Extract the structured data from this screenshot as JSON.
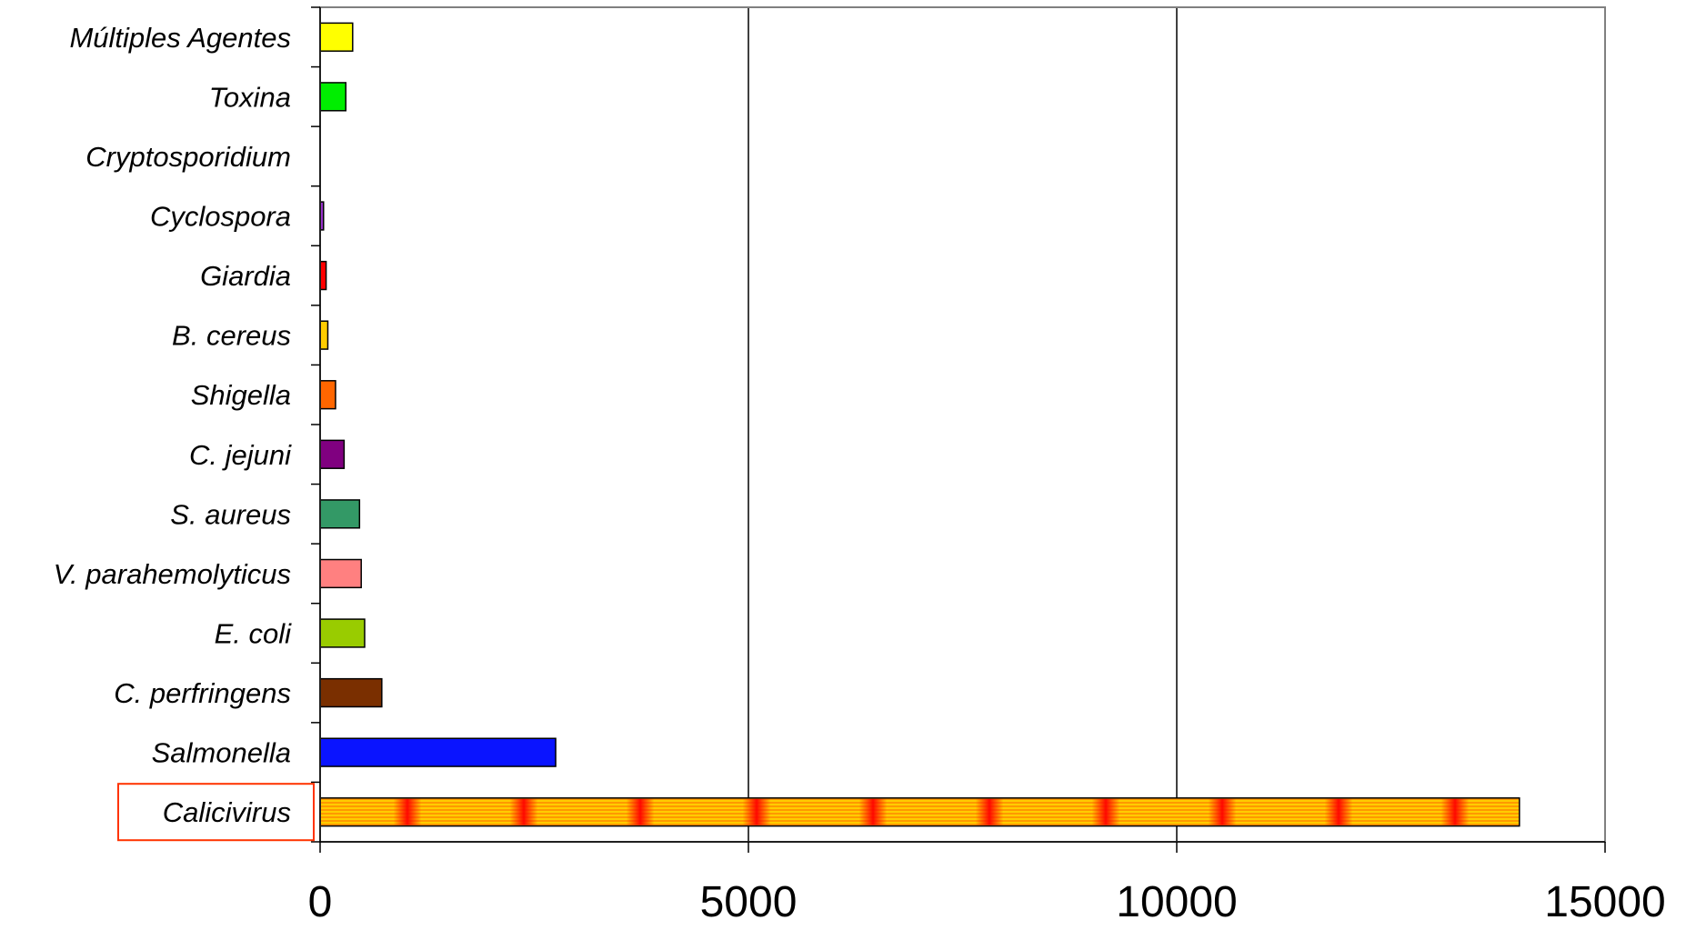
{
  "chart_data": {
    "type": "bar",
    "orientation": "horizontal",
    "categories": [
      "Calicivirus",
      "Salmonella",
      "C. perfringens",
      "E. coli",
      "V. parahemolyticus",
      "S. aureus",
      "C. jejuni",
      "Shigella",
      "B. cereus",
      "Giardia",
      "Cyclospora",
      "Cryptosporidium",
      "Toxina",
      "Múltiples Agentes"
    ],
    "values": [
      14000,
      2750,
      720,
      520,
      480,
      460,
      280,
      180,
      90,
      70,
      40,
      0,
      300,
      380
    ],
    "bar_colors": [
      "#ffd24d",
      "#0a14ff",
      "#7a2f00",
      "#99cc00",
      "#ff8080",
      "#339966",
      "#800080",
      "#ff6600",
      "#ffcc00",
      "#ff0000",
      "#9933cc",
      "#cccccc",
      "#00ee00",
      "#ffff00"
    ],
    "highlight_color": "#ff3300",
    "highlighted_category": "Calicivirus",
    "xlim": [
      0,
      15000
    ],
    "x_ticks": [
      0,
      5000,
      10000,
      15000
    ],
    "x_tick_labels": [
      "0",
      "5000",
      "10000",
      "15000"
    ],
    "grid_x": true,
    "title": "",
    "xlabel": "",
    "ylabel": ""
  }
}
